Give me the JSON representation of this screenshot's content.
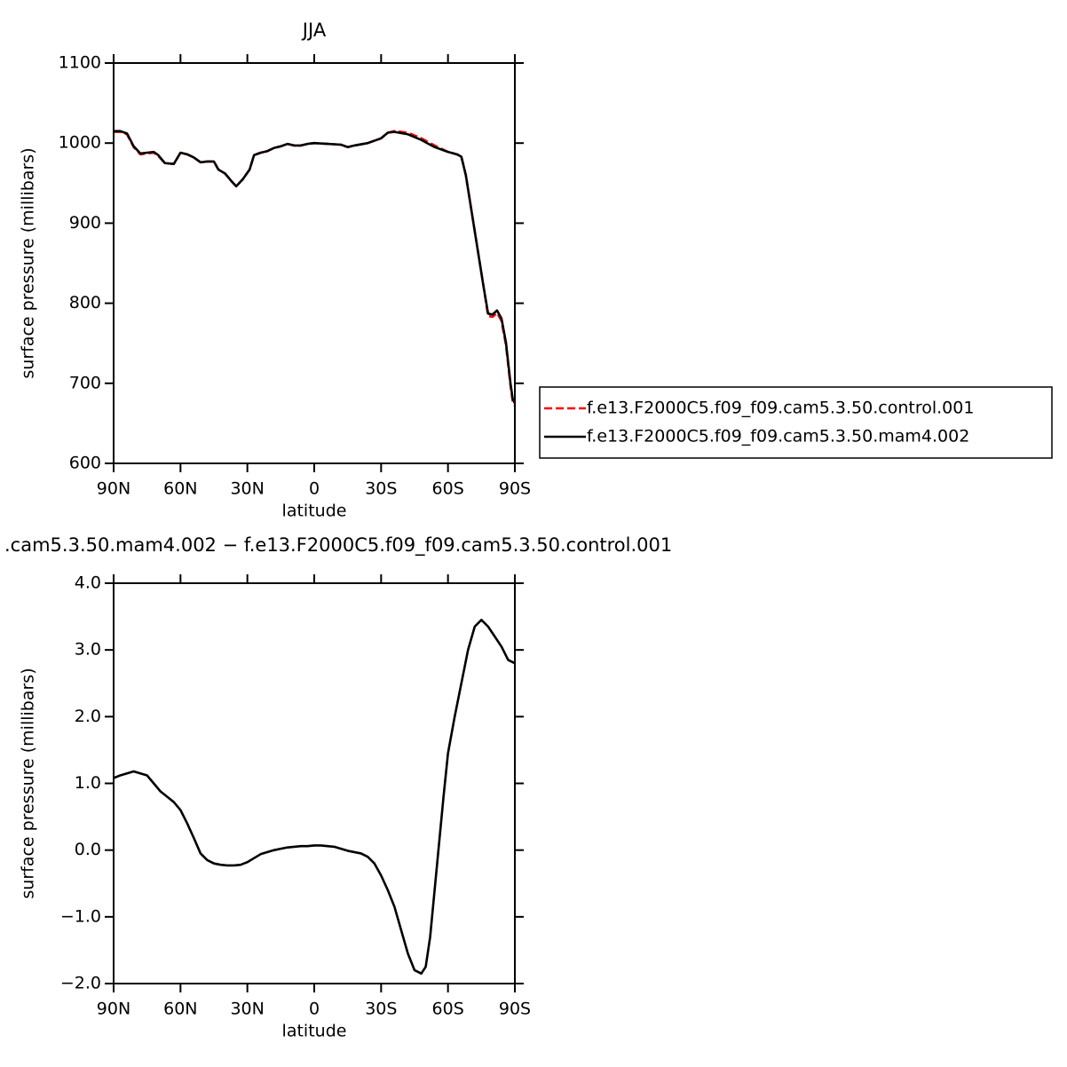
{
  "chart_data": [
    {
      "type": "line",
      "title": "JJA",
      "xlabel": "latitude",
      "ylabel": "surface pressure (millibars)",
      "xlim": [
        90,
        -90
      ],
      "ylim": [
        600,
        1100
      ],
      "xticks": [
        {
          "value": 90,
          "label": "90N"
        },
        {
          "value": 60,
          "label": "60N"
        },
        {
          "value": 30,
          "label": "30N"
        },
        0,
        {
          "value": -30,
          "label": "30S"
        },
        {
          "value": -60,
          "label": "60S"
        },
        {
          "value": -90,
          "label": "90S"
        }
      ],
      "yticks": [
        600,
        700,
        800,
        900,
        1000,
        1100
      ],
      "legend": "right",
      "x": [
        90,
        87,
        84,
        81,
        78,
        75,
        72,
        70,
        67,
        63,
        60,
        57,
        54,
        51,
        48,
        45,
        43,
        40,
        37,
        35,
        32,
        29,
        27,
        24,
        21,
        18,
        15,
        12,
        9,
        6,
        3,
        0,
        -6,
        -12,
        -15,
        -18,
        -24,
        -30,
        -33,
        -36,
        -42,
        -48,
        -54,
        -60,
        -64,
        -66,
        -68,
        -70,
        -72,
        -74,
        -76,
        -78,
        -80,
        -82,
        -84,
        -86,
        -88,
        -89,
        -90
      ],
      "series": [
        {
          "name": "f.e13.F2000C5.f09_f09.cam5.3.50.control.001",
          "color": "#ff0000",
          "dash": true,
          "values": [
            1014,
            1014,
            1011,
            995,
            986,
            987,
            988,
            984,
            975,
            974,
            988,
            986,
            982,
            976,
            977,
            977,
            967,
            962,
            952,
            946,
            955,
            967,
            985,
            988,
            990,
            994,
            996,
            999,
            997,
            997,
            999,
            1000,
            999,
            998,
            995,
            997,
            1000,
            1006,
            1013,
            1015,
            1013,
            1006,
            997,
            989,
            986,
            983,
            960,
            925,
            890,
            855,
            820,
            784,
            783,
            788,
            778,
            748,
            698,
            678,
            672
          ]
        },
        {
          "name": "f.e13.F2000C5.f09_f09.cam5.3.50.mam4.002",
          "color": "#000000",
          "dash": false,
          "values": [
            1015,
            1015,
            1012,
            996,
            987,
            988,
            989,
            985,
            975,
            974,
            988,
            986,
            982,
            976,
            977,
            977,
            967,
            962,
            952,
            946,
            955,
            967,
            985,
            988,
            990,
            994,
            996,
            999,
            997,
            997,
            999,
            1000,
            999,
            998,
            995,
            997,
            1000,
            1006,
            1013,
            1014,
            1011,
            1004,
            995,
            989,
            986,
            983,
            960,
            925,
            890,
            855,
            820,
            787,
            786,
            791,
            781,
            751,
            701,
            681,
            675
          ]
        }
      ]
    },
    {
      "type": "line",
      "title": ".cam5.3.50.mam4.002 − f.e13.F2000C5.f09_f09.cam5.3.50.control.001",
      "xlabel": "latitude",
      "ylabel": "surface pressure (millibars)",
      "xlim": [
        90,
        -90
      ],
      "ylim": [
        -2,
        4
      ],
      "xticks": [
        {
          "value": 90,
          "label": "90N"
        },
        {
          "value": 60,
          "label": "60N"
        },
        {
          "value": 30,
          "label": "30N"
        },
        0,
        {
          "value": -30,
          "label": "30S"
        },
        {
          "value": -60,
          "label": "60S"
        },
        {
          "value": -90,
          "label": "90S"
        }
      ],
      "yticks": [
        {
          "value": -2,
          "label": "−2.0"
        },
        {
          "value": -1,
          "label": "−1.0"
        },
        {
          "value": 0,
          "label": "0.0"
        },
        {
          "value": 1,
          "label": "1.0"
        },
        {
          "value": 2,
          "label": "2.0"
        },
        {
          "value": 3,
          "label": "3.0"
        },
        {
          "value": 4,
          "label": "4.0"
        }
      ],
      "x": [
        90,
        87,
        84,
        81,
        78,
        75,
        72,
        69,
        66,
        63,
        60,
        57,
        54,
        51,
        48,
        45,
        42,
        39,
        36,
        33,
        30,
        27,
        24,
        21,
        18,
        15,
        12,
        9,
        6,
        3,
        0,
        -3,
        -6,
        -9,
        -12,
        -15,
        -18,
        -21,
        -24,
        -27,
        -30,
        -33,
        -36,
        -39,
        -42,
        -45,
        -48,
        -50,
        -52,
        -54,
        -56,
        -58,
        -60,
        -63,
        -66,
        -69,
        -72,
        -75,
        -78,
        -81,
        -84,
        -87,
        -90
      ],
      "series": [
        {
          "color": "#000000",
          "values": [
            1.08,
            1.12,
            1.15,
            1.18,
            1.15,
            1.12,
            1.0,
            0.88,
            0.8,
            0.72,
            0.6,
            0.4,
            0.18,
            -0.05,
            -0.15,
            -0.2,
            -0.22,
            -0.23,
            -0.23,
            -0.22,
            -0.18,
            -0.12,
            -0.06,
            -0.03,
            0.0,
            0.02,
            0.04,
            0.05,
            0.06,
            0.06,
            0.07,
            0.07,
            0.06,
            0.05,
            0.02,
            -0.01,
            -0.03,
            -0.05,
            -0.1,
            -0.2,
            -0.38,
            -0.6,
            -0.85,
            -1.2,
            -1.55,
            -1.8,
            -1.85,
            -1.75,
            -1.3,
            -0.6,
            0.1,
            0.8,
            1.45,
            2.0,
            2.5,
            3.0,
            3.35,
            3.45,
            3.35,
            3.2,
            3.05,
            2.85,
            2.8
          ]
        }
      ]
    }
  ]
}
